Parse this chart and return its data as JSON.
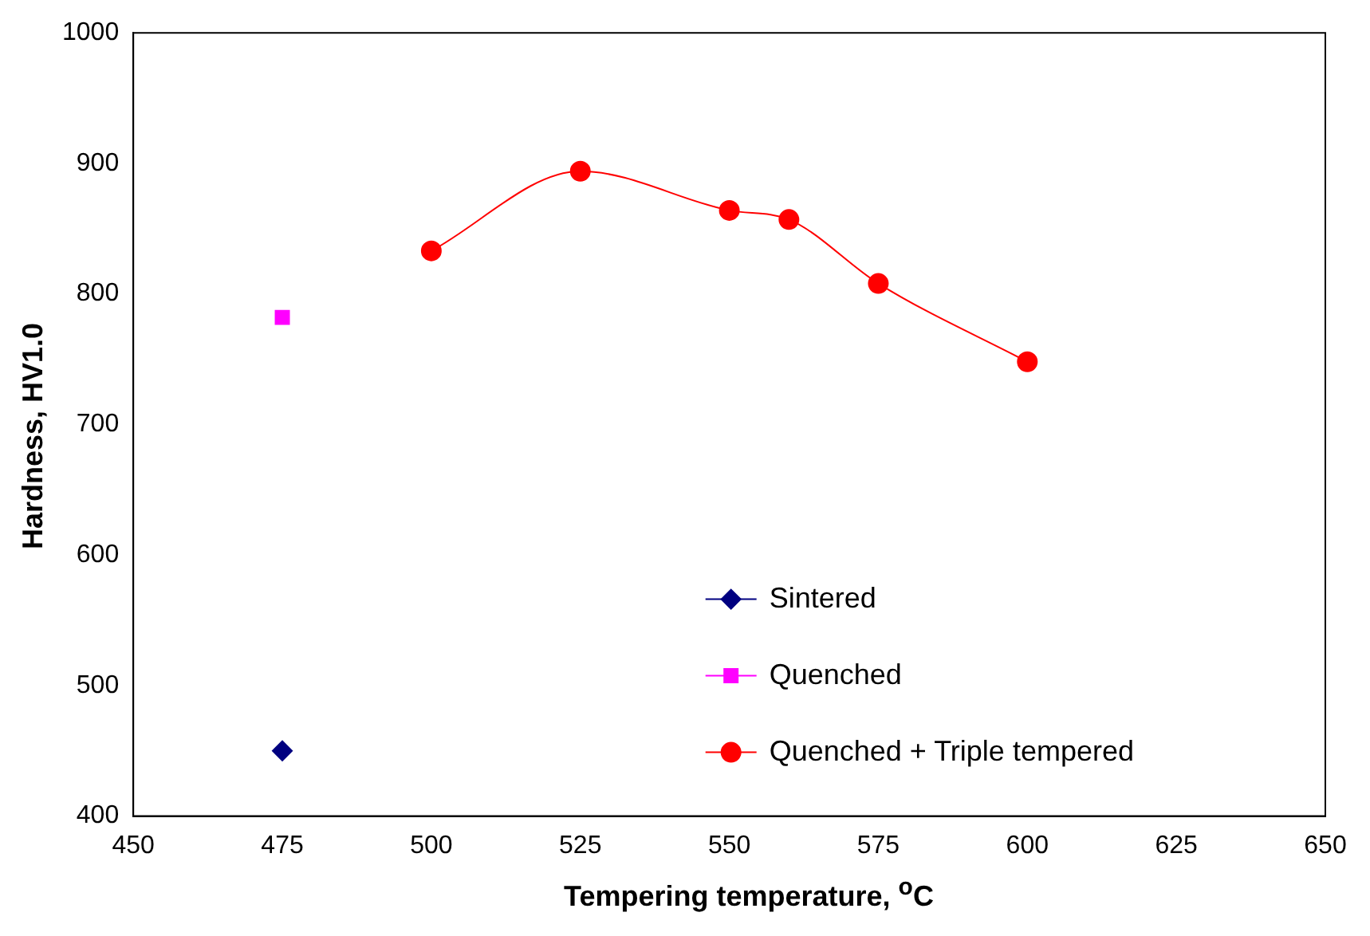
{
  "chart_data": {
    "type": "line",
    "xlabel": "Tempering temperature, $^{o}$C",
    "ylabel": "Hardness, HV1.0",
    "xlim": [
      450,
      650
    ],
    "xticks": [
      450,
      475,
      500,
      525,
      550,
      575,
      600,
      625,
      650
    ],
    "ylim": [
      400,
      1000
    ],
    "yticks": [
      400,
      500,
      600,
      700,
      800,
      900,
      1000
    ],
    "grid": false,
    "legend": "bottom right",
    "series": [
      {
        "name": "Sintered",
        "color": "#000080",
        "marker": "diamond",
        "x": [
          475
        ],
        "values": [
          450
        ]
      },
      {
        "name": "Quenched",
        "color": "#ff00ff",
        "marker": "square",
        "x": [
          475
        ],
        "values": [
          782
        ]
      },
      {
        "name": "Quenched + Triple tempered",
        "color": "#ff0000",
        "marker": "circle",
        "x": [
          500,
          525,
          550,
          560,
          575,
          600
        ],
        "values": [
          833,
          894,
          864,
          857,
          808,
          748
        ]
      }
    ]
  }
}
